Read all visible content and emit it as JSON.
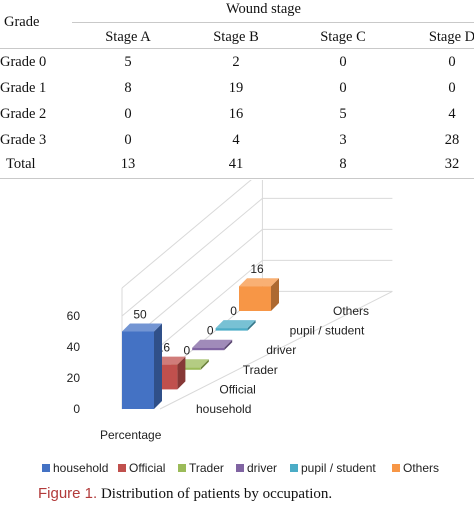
{
  "table": {
    "grade_header": "Grade",
    "stage_group_header": "Wound stage",
    "columns": [
      "Stage A",
      "Stage B",
      "Stage C",
      "Stage D"
    ],
    "rows": [
      {
        "label": "Grade 0",
        "values": [
          "5",
          "2",
          "0",
          "0"
        ]
      },
      {
        "label": "Grade 1",
        "values": [
          "8",
          "19",
          "0",
          "0"
        ]
      },
      {
        "label": "Grade 2",
        "values": [
          "0",
          "16",
          "5",
          "4"
        ]
      },
      {
        "label": "Grade 3",
        "values": [
          "0",
          "4",
          "3",
          "28"
        ]
      },
      {
        "label": "Total",
        "values": [
          "13",
          "41",
          "8",
          "32"
        ]
      }
    ]
  },
  "chart_data": {
    "type": "bar",
    "categories": [
      "household",
      "Official",
      "Trader",
      "driver",
      "pupil / student",
      "Others"
    ],
    "values": [
      50,
      16,
      0,
      0,
      0,
      16
    ],
    "data_labels": [
      "50",
      "16",
      "0",
      "0",
      "0",
      "16"
    ],
    "ylabel": "Percentage",
    "yticks": [
      "0",
      "20",
      "40",
      "60"
    ],
    "ylim": [
      0,
      60
    ],
    "legend_placement": "bottom",
    "colors": [
      "#4472c4",
      "#c0504d",
      "#9bbb59",
      "#8064a2",
      "#4bacc6",
      "#f79646"
    ],
    "grid": true
  },
  "caption": {
    "label": "Figure 1.",
    "text": "Distribution of patients by occupation."
  }
}
